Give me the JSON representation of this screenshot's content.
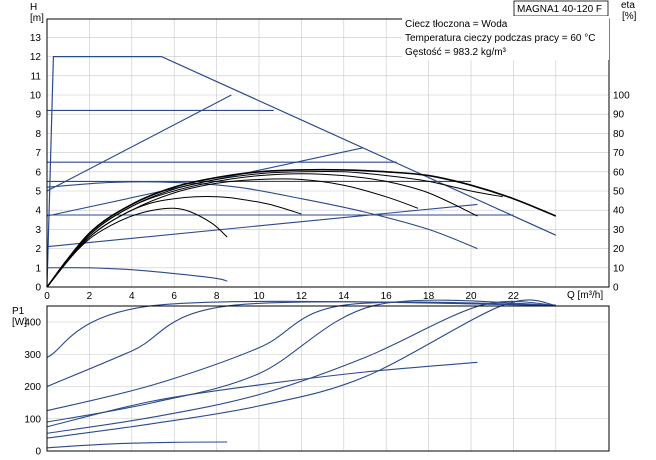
{
  "chart_data": [
    {
      "type": "line",
      "title": "MAGNA1 40-120 F",
      "notes": [
        "Ciecz tłoczona = Woda",
        "Temperatura cieczy podczas pracy = 60 °C",
        "Gęstość = 983.2 kg/m³"
      ],
      "xlabel": "Q [m³/h]",
      "ylabel": "H",
      "ylabel_unit": "[m]",
      "y2label": "eta",
      "y2label_unit": "[%]",
      "xlim": [
        0,
        24
      ],
      "ylim": [
        0,
        14
      ],
      "y2lim": [
        0,
        140
      ],
      "x_ticks": [
        "0",
        "2",
        "4",
        "6",
        "8",
        "10",
        "12",
        "14",
        "16",
        "18",
        "20",
        "22"
      ],
      "y_ticks": [
        "0",
        "1",
        "2",
        "3",
        "4",
        "5",
        "6",
        "7",
        "8",
        "9",
        "10",
        "11",
        "12",
        "13"
      ],
      "y2_ticks": [
        "0",
        "10",
        "20",
        "30",
        "40",
        "50",
        "60",
        "70",
        "80",
        "90",
        "100"
      ],
      "grid": true,
      "series_head_max": {
        "x": [
          0,
          0.3,
          5.4,
          24
        ],
        "y": [
          0,
          12,
          12,
          2.7
        ]
      },
      "series_head_levels": [
        {
          "x": [
            0,
            10.7
          ],
          "y": [
            9.2,
            9.2
          ]
        },
        {
          "x": [
            0,
            16.5
          ],
          "y": [
            6.5,
            6.5
          ]
        },
        {
          "x": [
            0,
            20.0
          ],
          "y": [
            5.5,
            5.5
          ]
        },
        {
          "x": [
            0,
            22.0
          ],
          "y": [
            3.75,
            3.75
          ]
        }
      ],
      "series_system_curves": [
        {
          "x": [
            0,
            8.7
          ],
          "y": [
            5.0,
            10.0
          ]
        },
        {
          "x": [
            0,
            14.9
          ],
          "y": [
            3.7,
            7.25
          ]
        },
        {
          "x": [
            0,
            20.3
          ],
          "y": [
            2.1,
            4.3
          ]
        }
      ],
      "series_efficiency": [
        {
          "x": [
            0,
            2,
            4,
            6,
            8,
            8.5
          ],
          "y": [
            10,
            10,
            9,
            7,
            4.5,
            3
          ]
        },
        {
          "x": [
            0,
            3,
            6,
            9,
            12,
            15,
            18,
            20.3
          ],
          "y": [
            52,
            54.5,
            54.5,
            52,
            46,
            39,
            30,
            20
          ]
        }
      ],
      "series_head_curves": [
        {
          "x": [
            0,
            1,
            2,
            3,
            4,
            5,
            6,
            6.8,
            7.8,
            8.5
          ],
          "y": [
            0,
            1.4,
            2.5,
            3.2,
            3.7,
            4.0,
            4.1,
            3.9,
            3.3,
            2.6
          ]
        },
        {
          "x": [
            0,
            1,
            2,
            3,
            4,
            5,
            6,
            7,
            8,
            9,
            10.5,
            12
          ],
          "y": [
            0,
            1.5,
            2.6,
            3.4,
            4.0,
            4.4,
            4.6,
            4.7,
            4.7,
            4.6,
            4.3,
            3.8
          ]
        },
        {
          "x": [
            0,
            2,
            4,
            6,
            8,
            10,
            12,
            14,
            16,
            17.5
          ],
          "y": [
            0,
            2.6,
            4.0,
            4.9,
            5.4,
            5.6,
            5.6,
            5.3,
            4.7,
            4.1
          ]
        },
        {
          "x": [
            0,
            2,
            4,
            6,
            8,
            10,
            12,
            14,
            16,
            18,
            20.3
          ],
          "y": [
            0,
            2.7,
            4.2,
            5.0,
            5.5,
            5.8,
            5.9,
            5.8,
            5.5,
            4.9,
            3.7
          ]
        },
        {
          "x": [
            0,
            2,
            4,
            6,
            8,
            10,
            12,
            14,
            16,
            18,
            20,
            21.5
          ],
          "y": [
            0,
            2.7,
            4.2,
            5.1,
            5.6,
            5.9,
            6.0,
            6.0,
            5.8,
            5.5,
            5.0,
            4.7
          ]
        },
        {
          "x": [
            0,
            2,
            4,
            6,
            8,
            10,
            12,
            14,
            16,
            18,
            20,
            22,
            24
          ],
          "y": [
            0,
            2.8,
            4.3,
            5.2,
            5.7,
            6.0,
            6.1,
            6.1,
            6.0,
            5.8,
            5.3,
            4.6,
            3.7
          ]
        }
      ]
    },
    {
      "type": "line",
      "ylabel": "P1",
      "ylabel_unit": "[W]",
      "xlim": [
        0,
        24
      ],
      "ylim": [
        0,
        450
      ],
      "y_ticks": [
        "0",
        "100",
        "200",
        "300",
        "400"
      ],
      "grid": true,
      "series_power": [
        {
          "x": [
            0,
            5.2,
            24
          ],
          "y": [
            290,
            452,
            452
          ]
        },
        {
          "x": [
            0,
            4,
            8.8,
            24
          ],
          "y": [
            200,
            310,
            452,
            452
          ]
        },
        {
          "x": [
            0,
            5,
            10,
            14,
            24
          ],
          "y": [
            125,
            205,
            320,
            452,
            452
          ]
        },
        {
          "x": [
            0,
            5,
            10,
            15.5,
            24
          ],
          "y": [
            90,
            150,
            240,
            452,
            452
          ]
        },
        {
          "x": [
            0,
            5,
            10,
            15,
            20.5,
            24
          ],
          "y": [
            55,
            105,
            175,
            290,
            452,
            452
          ]
        },
        {
          "x": [
            0,
            5,
            10,
            15,
            21.5,
            24
          ],
          "y": [
            40,
            85,
            140,
            230,
            452,
            452
          ]
        },
        {
          "x": [
            0,
            5,
            10,
            15,
            20.3
          ],
          "y": [
            75,
            155,
            205,
            245,
            275
          ]
        },
        {
          "x": [
            0,
            3,
            6,
            8.5
          ],
          "y": [
            10,
            22,
            27,
            28
          ]
        }
      ]
    }
  ]
}
